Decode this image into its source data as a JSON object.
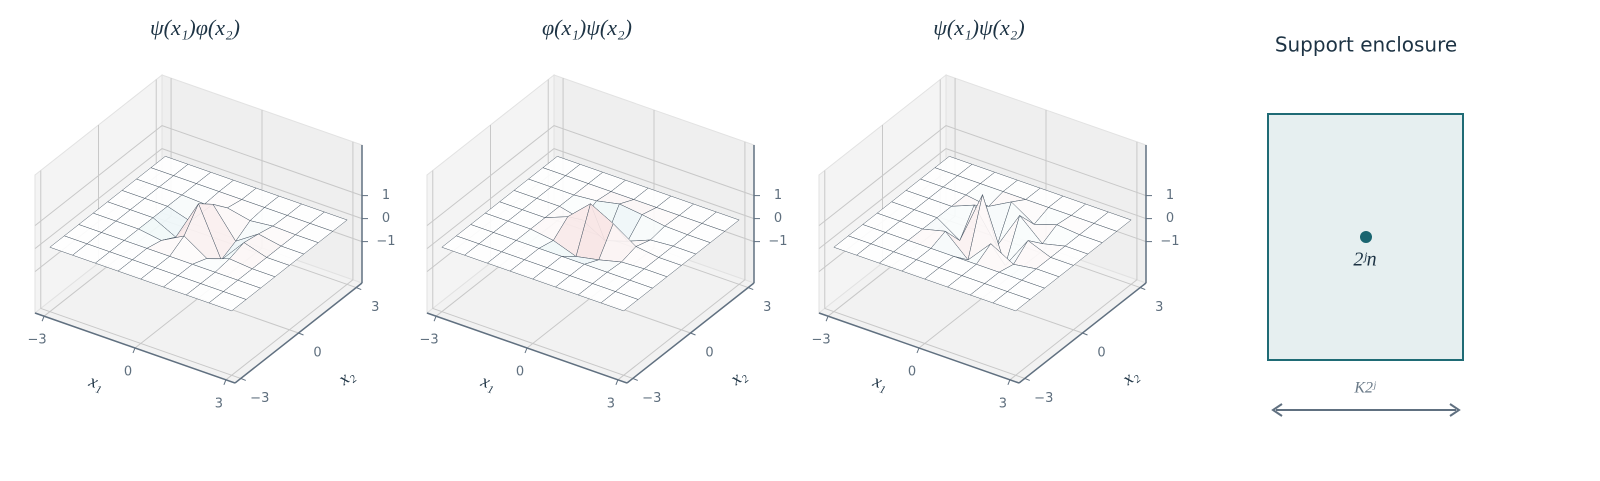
{
  "chart_data": [
    {
      "type": "surface",
      "title": "ψ(x₁)φ(x₂)",
      "xlabel": "x₁",
      "ylabel": "x₂",
      "x": [
        -3,
        -2.25,
        -1.5,
        -0.75,
        0,
        0.75,
        1.5,
        2.25,
        3
      ],
      "y": [
        -3,
        -2.25,
        -1.5,
        -0.75,
        0,
        0.75,
        1.5,
        2.25,
        3
      ],
      "z": [
        [
          0,
          0,
          0,
          0,
          0,
          0,
          0,
          0,
          0
        ],
        [
          0,
          0,
          0,
          0,
          0,
          0,
          0,
          0,
          0
        ],
        [
          0,
          0,
          0,
          0,
          0,
          0,
          0,
          0,
          0
        ],
        [
          0,
          0,
          0,
          -0.15,
          0.39,
          -0.24,
          0.09,
          0,
          0
        ],
        [
          0,
          0,
          0,
          -0.5,
          1.3,
          -0.8,
          0.3,
          0,
          0
        ],
        [
          0,
          0,
          0,
          -0.3,
          0.78,
          -0.48,
          0.18,
          0,
          0
        ],
        [
          0,
          0,
          0,
          -0.05,
          0.13,
          -0.08,
          0.03,
          0,
          0
        ],
        [
          0,
          0,
          0,
          0,
          0,
          0,
          0,
          0,
          0
        ],
        [
          0,
          0,
          0,
          0,
          0,
          0,
          0,
          0,
          0
        ]
      ],
      "xlim": [
        -3.3,
        3.3
      ],
      "ylim": [
        -3.3,
        3.3
      ],
      "zlim": [
        -2.8,
        3.2
      ],
      "xticks": [
        {
          "value": -3,
          "label": "−3"
        },
        0,
        3
      ],
      "yticks": [
        {
          "value": -3,
          "label": "−3"
        },
        0,
        3
      ],
      "zticks": [
        {
          "value": -1,
          "label": "−1"
        },
        0,
        1
      ],
      "colors": [
        "#9fcfd8",
        "#ffffff",
        "#e5a0a0"
      ]
    },
    {
      "type": "surface",
      "title": "φ(x₁)ψ(x₂)",
      "xlabel": "x₁",
      "ylabel": "x₂",
      "x": [
        -3,
        -2.25,
        -1.5,
        -0.75,
        0,
        0.75,
        1.5,
        2.25,
        3
      ],
      "y": [
        -3,
        -2.25,
        -1.5,
        -0.75,
        0,
        0.75,
        1.5,
        2.25,
        3
      ],
      "z": [
        [
          0,
          0,
          0,
          0,
          0,
          0,
          0,
          0,
          0
        ],
        [
          0,
          0,
          0,
          0,
          0,
          0,
          0,
          0,
          0
        ],
        [
          0,
          0,
          0,
          0,
          0,
          0,
          0,
          0,
          0
        ],
        [
          0,
          0,
          0,
          -0.15,
          -0.5,
          -0.3,
          -0.05,
          0,
          0
        ],
        [
          0,
          0,
          0,
          0.39,
          1.3,
          0.78,
          0.13,
          0,
          0
        ],
        [
          0,
          0,
          0,
          -0.24,
          -0.8,
          -0.48,
          -0.08,
          0,
          0
        ],
        [
          0,
          0,
          0,
          0.09,
          0.3,
          0.18,
          0.03,
          0,
          0
        ],
        [
          0,
          0,
          0,
          0,
          0,
          0,
          0,
          0,
          0
        ],
        [
          0,
          0,
          0,
          0,
          0,
          0,
          0,
          0,
          0
        ]
      ],
      "xlim": [
        -3.3,
        3.3
      ],
      "ylim": [
        -3.3,
        3.3
      ],
      "zlim": [
        -2.8,
        3.2
      ],
      "xticks": [
        {
          "value": -3,
          "label": "−3"
        },
        0,
        3
      ],
      "yticks": [
        {
          "value": -3,
          "label": "−3"
        },
        0,
        3
      ],
      "zticks": [
        {
          "value": -1,
          "label": "−1"
        },
        0,
        1
      ],
      "colors": [
        "#9fcfd8",
        "#ffffff",
        "#e5a0a0"
      ]
    },
    {
      "type": "surface",
      "title": "ψ(x₁)ψ(x₂)",
      "xlabel": "x₁",
      "ylabel": "x₂",
      "x": [
        -3,
        -2.25,
        -1.5,
        -0.75,
        0,
        0.75,
        1.5,
        2.25,
        3
      ],
      "y": [
        -3,
        -2.25,
        -1.5,
        -0.75,
        0,
        0.75,
        1.5,
        2.25,
        3
      ],
      "z": [
        [
          0,
          0,
          0,
          0,
          0,
          0,
          0,
          0,
          0
        ],
        [
          0,
          0,
          0,
          0,
          0,
          0,
          0,
          0,
          0
        ],
        [
          0,
          0,
          0,
          0,
          0,
          0,
          0,
          0,
          0
        ],
        [
          0,
          0,
          0,
          0.25,
          -0.65,
          0.4,
          -0.15,
          0,
          0
        ],
        [
          0,
          0,
          0,
          -0.65,
          1.69,
          -1.04,
          0.39,
          0,
          0
        ],
        [
          0,
          0,
          0,
          0.4,
          -1.04,
          0.64,
          -0.24,
          0,
          0
        ],
        [
          0,
          0,
          0,
          -0.15,
          0.39,
          -0.24,
          0.09,
          0,
          0
        ],
        [
          0,
          0,
          0,
          0,
          0,
          0,
          0,
          0,
          0
        ],
        [
          0,
          0,
          0,
          0,
          0,
          0,
          0,
          0,
          0
        ]
      ],
      "xlim": [
        -3.3,
        3.3
      ],
      "ylim": [
        -3.3,
        3.3
      ],
      "zlim": [
        -2.8,
        3.2
      ],
      "xticks": [
        {
          "value": -3,
          "label": "−3"
        },
        0,
        3
      ],
      "yticks": [
        {
          "value": -3,
          "label": "−3"
        },
        0,
        3
      ],
      "zticks": [
        {
          "value": -1,
          "label": "−1"
        },
        0,
        1
      ],
      "colors": [
        "#9fcfd8",
        "#ffffff",
        "#e5a0a0"
      ]
    }
  ],
  "diagram": {
    "title": "Support enclosure",
    "center_label": "2ʲn",
    "width_label": "K2ʲ"
  }
}
